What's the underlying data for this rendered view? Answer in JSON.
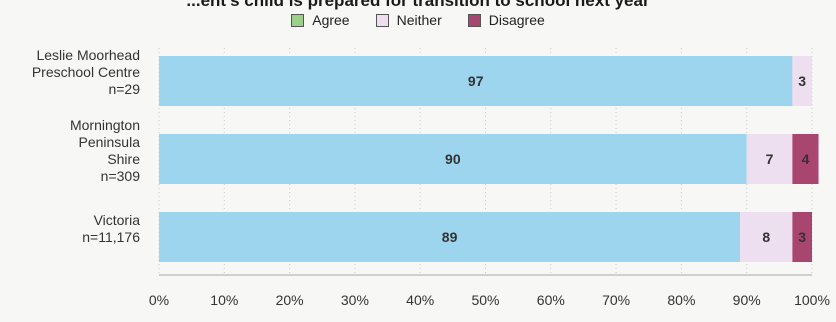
{
  "chart_data": {
    "type": "bar",
    "orientation": "horizontal",
    "stacked": true,
    "title": "...ent's child is prepared for transition to school next year",
    "legend": {
      "placement": "top",
      "entries": [
        "Agree",
        "Neither",
        "Disagree"
      ]
    },
    "colors": {
      "Agree": "#9ccf8a",
      "Neither": "#eedff0",
      "Disagree": "#a8466f",
      "bar_fill_observed": "#9ed5ee"
    },
    "categories": [
      {
        "lines": [
          "Leslie Moorhead",
          "Preschool Centre",
          "n=29"
        ]
      },
      {
        "lines": [
          "Mornington",
          "Peninsula",
          "Shire",
          "n=309"
        ]
      },
      {
        "lines": [
          "Victoria",
          "n=11,176"
        ]
      }
    ],
    "series": [
      {
        "name": "Agree",
        "values": [
          97,
          90,
          89
        ]
      },
      {
        "name": "Neither",
        "values": [
          3,
          7,
          8
        ]
      },
      {
        "name": "Disagree",
        "values": [
          0,
          4,
          3
        ]
      }
    ],
    "data_labels": [
      [
        "97",
        "3",
        ""
      ],
      [
        "90",
        "7",
        "4"
      ],
      [
        "89",
        "8",
        "3"
      ]
    ],
    "xlim": [
      0,
      100
    ],
    "x_ticks": [
      "0%",
      "10%",
      "20%",
      "30%",
      "40%",
      "50%",
      "60%",
      "70%",
      "80%",
      "90%",
      "100%"
    ],
    "grid": "vertical dotted"
  }
}
